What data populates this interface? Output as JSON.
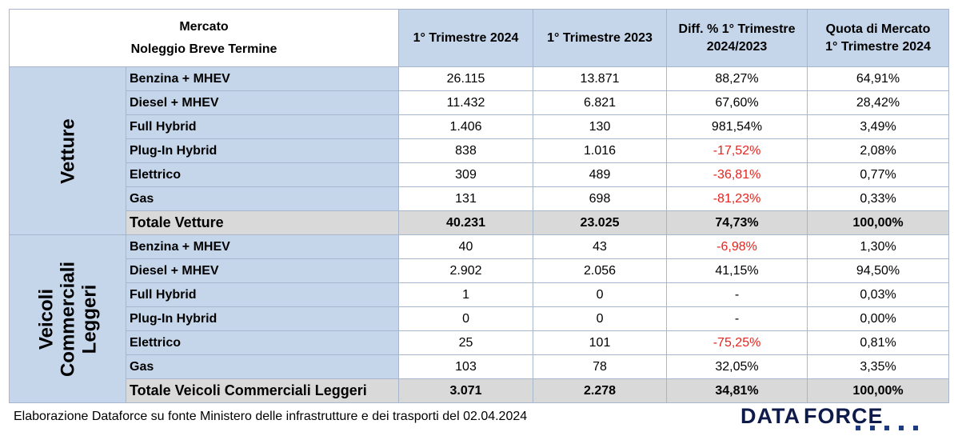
{
  "header": {
    "title_line1": "Mercato",
    "title_line2": "Noleggio Breve Termine",
    "col1": "1° Trimestre 2024",
    "col2": "1° Trimestre 2023",
    "col3_line1": "Diff. % 1° Trimestre",
    "col3_line2": "2024/2023",
    "col4_line1": "Quota di Mercato",
    "col4_line2": "1° Trimestre 2024"
  },
  "groups": {
    "vetture": {
      "label": "Vetture"
    },
    "vcl": {
      "label_line1": "Veicoli",
      "label_line2": "Commerciali",
      "label_line3": "Leggeri"
    }
  },
  "rows": [
    {
      "cat": "Benzina + MHEV",
      "t2024": "26.115",
      "t2023": "13.871",
      "diff": "88,27%",
      "quota": "64,91%"
    },
    {
      "cat": "Diesel + MHEV",
      "t2024": "11.432",
      "t2023": "6.821",
      "diff": "67,60%",
      "quota": "28,42%"
    },
    {
      "cat": "Full Hybrid",
      "t2024": "1.406",
      "t2023": "130",
      "diff": "981,54%",
      "quota": "3,49%"
    },
    {
      "cat": "Plug-In Hybrid",
      "t2024": "838",
      "t2023": "1.016",
      "diff": "-17,52%",
      "quota": "2,08%"
    },
    {
      "cat": "Elettrico",
      "t2024": "309",
      "t2023": "489",
      "diff": "-36,81%",
      "quota": "0,77%"
    },
    {
      "cat": "Gas",
      "t2024": "131",
      "t2023": "698",
      "diff": "-81,23%",
      "quota": "0,33%"
    },
    {
      "cat": "Totale Vetture",
      "t2024": "40.231",
      "t2023": "23.025",
      "diff": "74,73%",
      "quota": "100,00%"
    },
    {
      "cat": "Benzina + MHEV",
      "t2024": "40",
      "t2023": "43",
      "diff": "-6,98%",
      "quota": "1,30%"
    },
    {
      "cat": "Diesel + MHEV",
      "t2024": "2.902",
      "t2023": "2.056",
      "diff": "41,15%",
      "quota": "94,50%"
    },
    {
      "cat": "Full Hybrid",
      "t2024": "1",
      "t2023": "0",
      "diff": "-",
      "quota": "0,03%"
    },
    {
      "cat": "Plug-In Hybrid",
      "t2024": "0",
      "t2023": "0",
      "diff": "-",
      "quota": "0,00%"
    },
    {
      "cat": "Elettrico",
      "t2024": "25",
      "t2023": "101",
      "diff": "-75,25%",
      "quota": "0,81%"
    },
    {
      "cat": "Gas",
      "t2024": "103",
      "t2023": "78",
      "diff": "32,05%",
      "quota": "3,35%"
    },
    {
      "cat": "Totale Veicoli Commerciali Leggeri",
      "t2024": "3.071",
      "t2023": "2.278",
      "diff": "34,81%",
      "quota": "100,00%"
    }
  ],
  "footer": "Elaborazione Dataforce su fonte Ministero delle infrastrutture e dei trasporti del 02.04.2024",
  "logo": {
    "part1": "DATA",
    "part2": "FORCE",
    "dots_icon": "dots-icon"
  },
  "colors": {
    "header_bg": "#c5d6ea",
    "total_bg": "#d9d9d9",
    "negative": "#e8221d",
    "border": "#a7b6cc"
  }
}
